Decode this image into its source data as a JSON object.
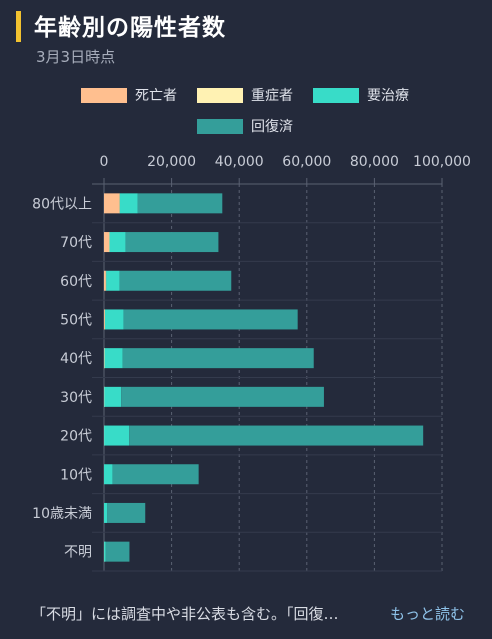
{
  "header": {
    "title": "年齢別の陽性者数",
    "subtitle": "3月3日時点"
  },
  "footer": {
    "note": "「不明」には調査中や非公表も含む。「回復…",
    "read_more": "もっと読む"
  },
  "colors": {
    "death": "#ffbf8f",
    "severe": "#fff2b3",
    "treatment": "#38dcc8",
    "recovered": "#349e9a",
    "axis_text": "#c8ccd6",
    "grid": "#5a6172"
  },
  "chart_data": {
    "type": "bar",
    "orientation": "horizontal",
    "stacked": true,
    "xlim": [
      0,
      100000
    ],
    "x_ticks": [
      "0",
      "20,000",
      "40,000",
      "60,000",
      "80,000",
      "100,000"
    ],
    "x_tick_values": [
      0,
      20000,
      40000,
      60000,
      80000,
      100000
    ],
    "categories": [
      "80代以上",
      "70代",
      "60代",
      "50代",
      "40代",
      "30代",
      "20代",
      "10代",
      "10歳未満",
      "不明"
    ],
    "series": [
      {
        "name": "死亡者",
        "color": "#ffbf8f",
        "values": [
          4500,
          1500,
          500,
          200,
          100,
          50,
          20,
          0,
          0,
          30
        ]
      },
      {
        "name": "重症者",
        "color": "#fff2b3",
        "values": [
          200,
          150,
          150,
          100,
          50,
          20,
          10,
          0,
          0,
          0
        ]
      },
      {
        "name": "要治療",
        "color": "#38dcc8",
        "values": [
          5300,
          4700,
          4000,
          5500,
          5400,
          5000,
          7400,
          2500,
          900,
          500
        ]
      },
      {
        "name": "回復済",
        "color": "#349e9a",
        "values": [
          25000,
          27500,
          33000,
          51500,
          56500,
          60000,
          87000,
          25500,
          11300,
          7000
        ]
      }
    ],
    "legend_position": "top",
    "grid": true
  }
}
